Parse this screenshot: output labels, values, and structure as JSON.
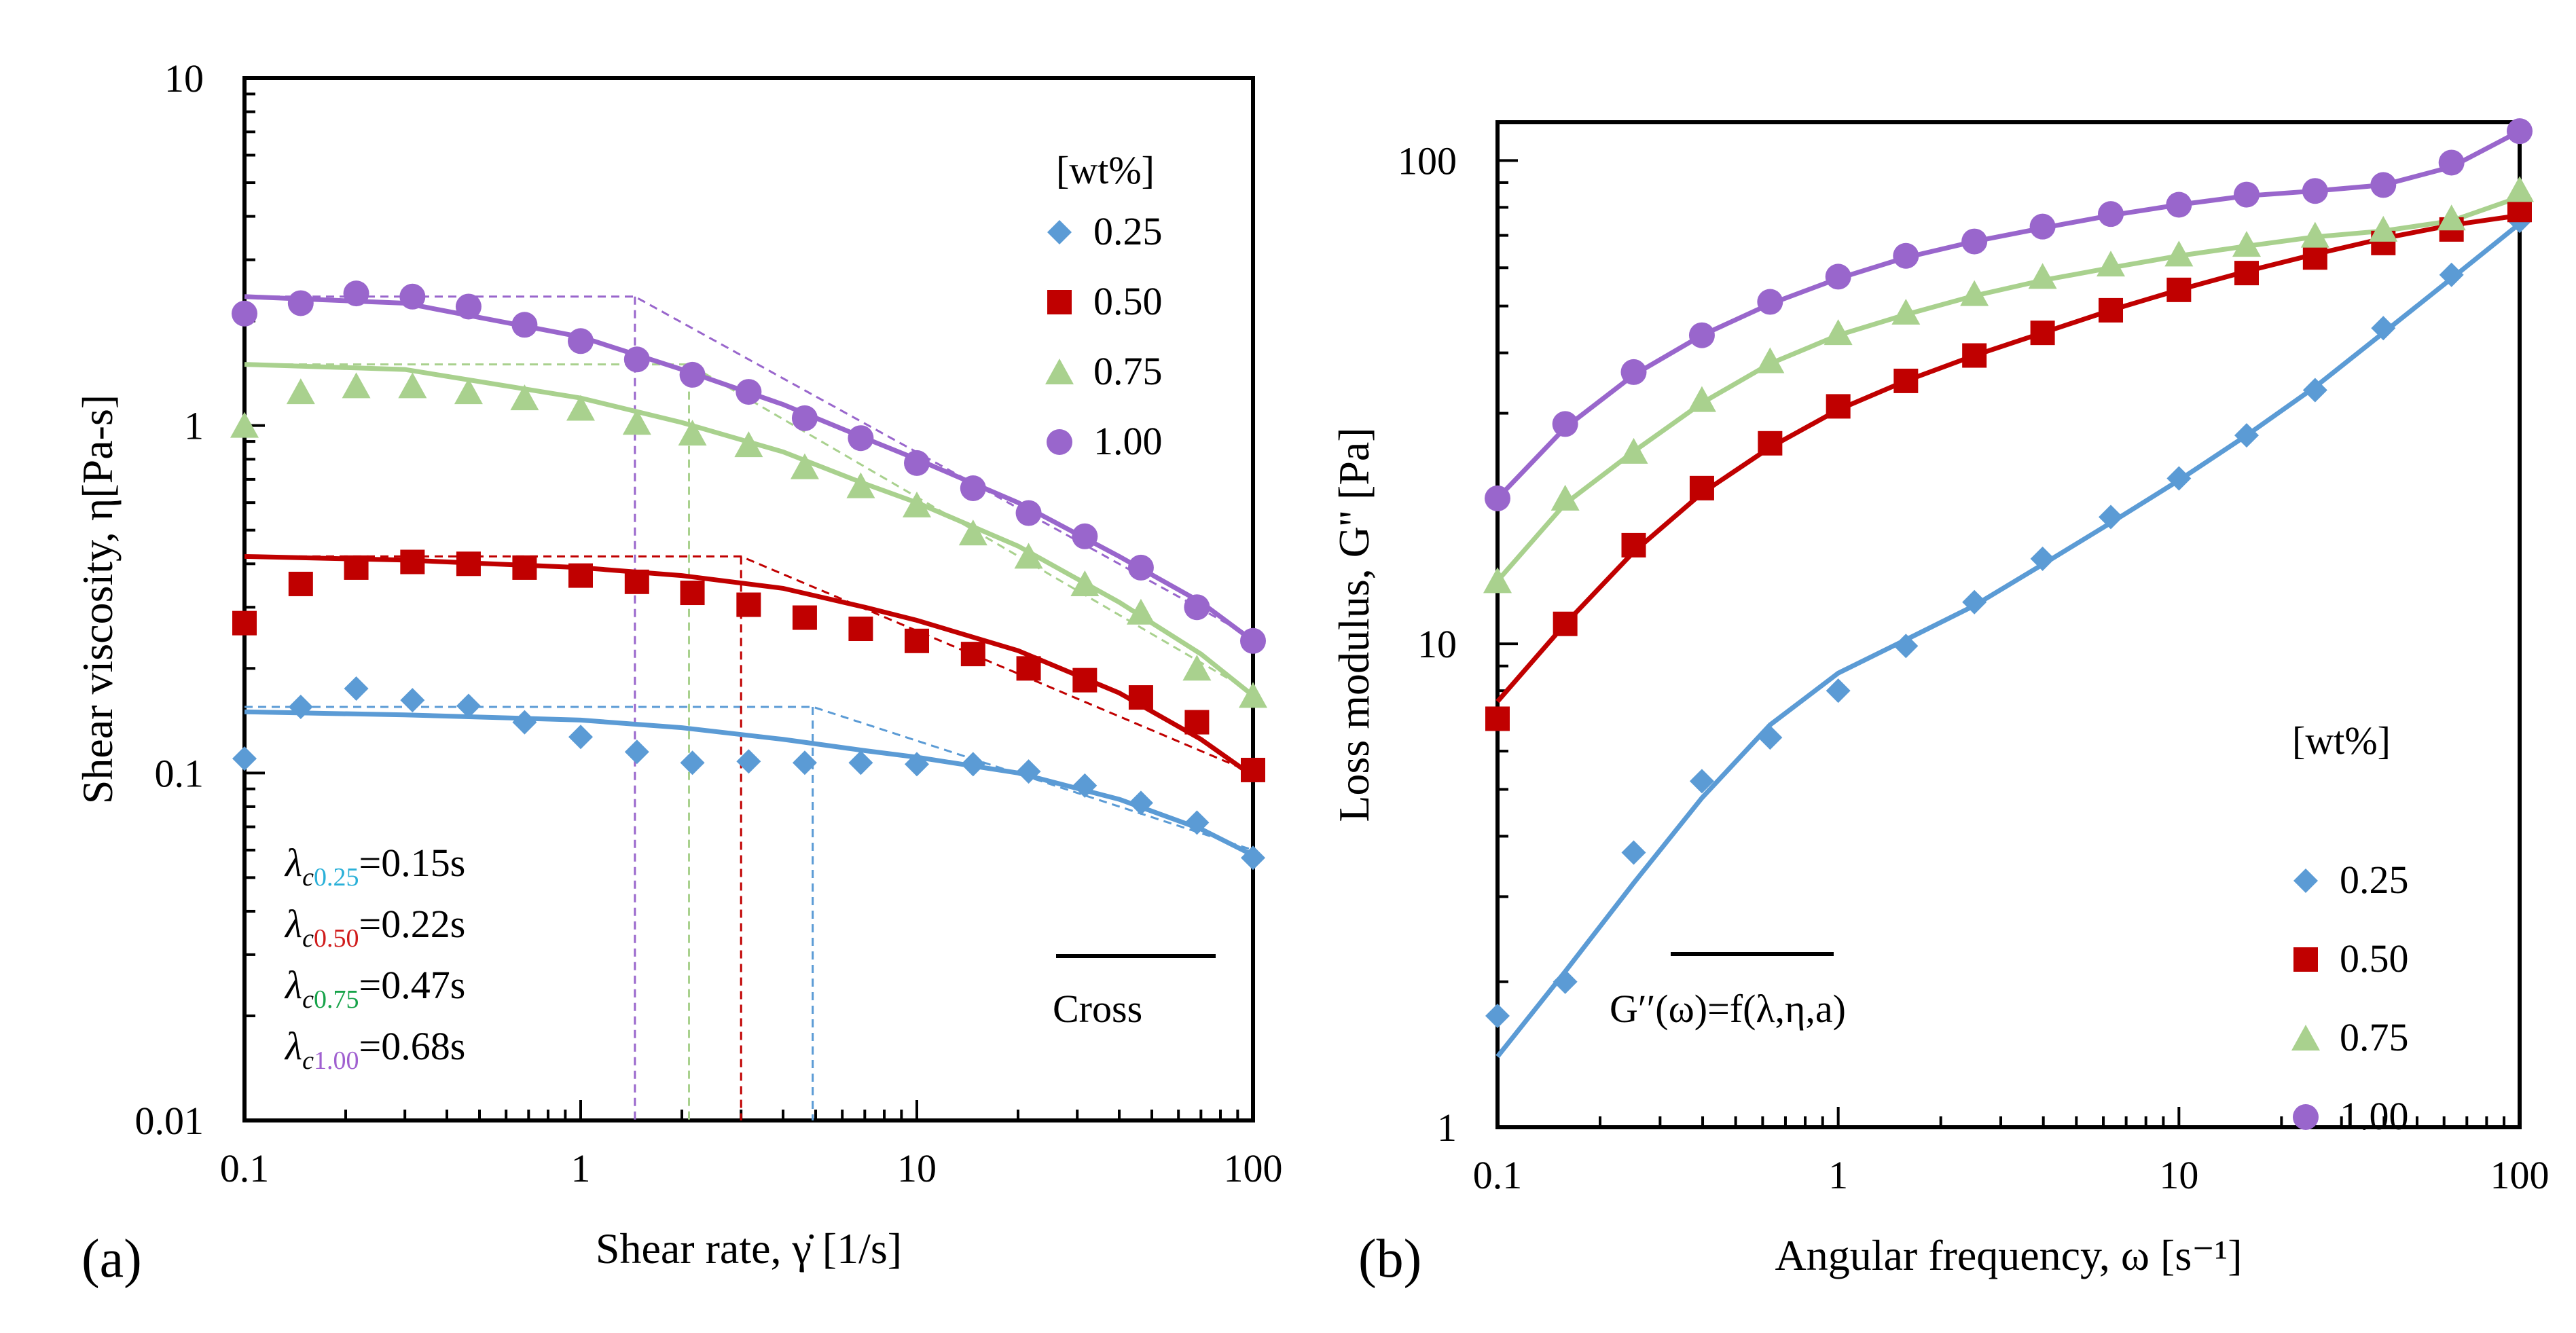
{
  "chart_data": [
    {
      "panel": "(a)",
      "type": "scatter",
      "xscale": "log",
      "yscale": "log",
      "xlim": [
        0.1,
        100
      ],
      "ylim": [
        0.01,
        10
      ],
      "xlabel": "Shear rate, γ̇ [1/s]",
      "ylabel": "Shear viscosity, η[Pa-s]",
      "x_ticks": [
        0.1,
        1,
        10,
        100
      ],
      "x_tick_labels": [
        "0.1",
        "1",
        "10",
        "100"
      ],
      "y_ticks": [
        0.01,
        0.1,
        1,
        10
      ],
      "y_tick_labels": [
        "0.01",
        "0.1",
        "1",
        "10"
      ],
      "legend_title": "[wt%]",
      "model_label": "Cross",
      "lambda_lines": [
        {
          "prefix": "λ",
          "sub1": "c",
          "sub2": "0.25",
          "suffix": "=0.15s",
          "color": "#2ab0d8"
        },
        {
          "prefix": "λ",
          "sub1": "c",
          "sub2": "0.50",
          "suffix": "=0.22s",
          "color": "#d01c1c"
        },
        {
          "prefix": "λ",
          "sub1": "c",
          "sub2": "0.75",
          "suffix": "=0.47s",
          "color": "#17a34a"
        },
        {
          "prefix": "λ",
          "sub1": "c",
          "sub2": "1.00",
          "suffix": "=0.68s",
          "color": "#a060d0"
        }
      ],
      "series": [
        {
          "name": "0.25",
          "color": "#5b9bd5",
          "marker": "diamond",
          "x": [
            0.1,
            0.147,
            0.215,
            0.316,
            0.464,
            0.681,
            1.0,
            1.47,
            2.15,
            3.16,
            4.64,
            6.81,
            10.0,
            14.7,
            21.5,
            31.6,
            46.4,
            68.1,
            100
          ],
          "y": [
            0.11,
            0.155,
            0.175,
            0.162,
            0.156,
            0.14,
            0.127,
            0.115,
            0.107,
            0.108,
            0.107,
            0.107,
            0.106,
            0.106,
            0.101,
            0.092,
            0.082,
            0.072,
            0.057
          ],
          "fit_x": [
            0.1,
            0.3,
            1.0,
            2.0,
            4.0,
            7.0,
            10,
            20,
            40,
            70,
            100
          ],
          "fit_y": [
            0.15,
            0.147,
            0.142,
            0.135,
            0.125,
            0.116,
            0.111,
            0.1,
            0.084,
            0.069,
            0.058
          ],
          "cross_guide_x": [
            0.1,
            4.9,
            100
          ],
          "cross_guide_y": [
            0.155,
            0.155,
            0.06
          ]
        },
        {
          "name": "0.50",
          "color": "#c00000",
          "marker": "square",
          "x": [
            0.1,
            0.147,
            0.215,
            0.316,
            0.464,
            0.681,
            1.0,
            1.47,
            2.15,
            3.16,
            4.64,
            6.81,
            10.0,
            14.7,
            21.5,
            31.6,
            46.4,
            68.1,
            100
          ],
          "y": [
            0.27,
            0.35,
            0.39,
            0.405,
            0.4,
            0.39,
            0.37,
            0.355,
            0.33,
            0.305,
            0.28,
            0.26,
            0.24,
            0.22,
            0.2,
            0.185,
            0.165,
            0.14,
            0.102
          ],
          "fit_x": [
            0.1,
            0.3,
            1.0,
            2.0,
            4.0,
            7.0,
            10,
            20,
            40,
            70,
            100
          ],
          "fit_y": [
            0.42,
            0.41,
            0.39,
            0.37,
            0.34,
            0.3,
            0.275,
            0.225,
            0.17,
            0.125,
            0.098
          ],
          "cross_guide_x": [
            0.1,
            3.0,
            100
          ],
          "cross_guide_y": [
            0.42,
            0.42,
            0.1
          ]
        },
        {
          "name": "0.75",
          "color": "#a9d18e",
          "marker": "triangle",
          "x": [
            0.1,
            0.147,
            0.215,
            0.316,
            0.464,
            0.681,
            1.0,
            1.47,
            2.15,
            3.16,
            4.64,
            6.81,
            10.0,
            14.7,
            21.5,
            31.6,
            46.4,
            68.1,
            100
          ],
          "y": [
            1.0,
            1.25,
            1.3,
            1.3,
            1.25,
            1.2,
            1.12,
            1.02,
            0.95,
            0.88,
            0.76,
            0.67,
            0.59,
            0.49,
            0.42,
            0.35,
            0.29,
            0.2,
            0.167
          ],
          "fit_x": [
            0.1,
            0.3,
            1.0,
            2.0,
            4.0,
            7.0,
            10,
            20,
            40,
            70,
            100
          ],
          "fit_y": [
            1.5,
            1.45,
            1.2,
            1.02,
            0.84,
            0.68,
            0.6,
            0.45,
            0.31,
            0.22,
            0.167
          ],
          "cross_guide_x": [
            0.1,
            2.1,
            100
          ],
          "cross_guide_y": [
            1.5,
            1.5,
            0.17
          ]
        },
        {
          "name": "1.00",
          "color": "#9966cc",
          "marker": "circle",
          "x": [
            0.1,
            0.147,
            0.215,
            0.316,
            0.464,
            0.681,
            1.0,
            1.47,
            2.15,
            3.16,
            4.64,
            6.81,
            10.0,
            14.7,
            21.5,
            31.6,
            46.4,
            68.1,
            100
          ],
          "y": [
            2.1,
            2.25,
            2.4,
            2.35,
            2.2,
            1.95,
            1.75,
            1.55,
            1.4,
            1.25,
            1.05,
            0.92,
            0.78,
            0.66,
            0.56,
            0.48,
            0.39,
            0.3,
            0.24
          ],
          "fit_x": [
            0.1,
            0.3,
            1.0,
            2.0,
            4.0,
            7.0,
            10,
            20,
            40,
            70,
            100
          ],
          "fit_y": [
            2.35,
            2.25,
            1.8,
            1.45,
            1.15,
            0.92,
            0.8,
            0.6,
            0.42,
            0.31,
            0.24
          ],
          "cross_guide_x": [
            0.1,
            1.45,
            100
          ],
          "cross_guide_y": [
            2.35,
            2.35,
            0.245
          ]
        }
      ]
    },
    {
      "panel": "(b)",
      "type": "scatter",
      "xscale": "log",
      "yscale": "log",
      "xlim": [
        0.1,
        100
      ],
      "ylim": [
        1,
        120
      ],
      "xlabel": "Angular frequency, ω [s⁻¹]",
      "ylabel": "Loss modulus, G'' [Pa]",
      "x_ticks": [
        0.1,
        1,
        10,
        100
      ],
      "x_tick_labels": [
        "0.1",
        "1",
        "10",
        "100"
      ],
      "y_ticks": [
        1,
        10,
        100
      ],
      "y_tick_labels": [
        "1",
        "10",
        "100"
      ],
      "legend_title": "[wt%]",
      "model_label": "G′′(ω)=f(λ,η,a)",
      "series": [
        {
          "name": "0.25",
          "color": "#5b9bd5",
          "marker": "diamond",
          "x": [
            0.1,
            0.158,
            0.251,
            0.398,
            0.631,
            1.0,
            1.58,
            2.51,
            3.98,
            6.31,
            10.0,
            15.8,
            25.1,
            39.8,
            63.1,
            100
          ],
          "y": [
            1.7,
            2.0,
            3.7,
            5.2,
            6.4,
            8.0,
            9.9,
            12.2,
            15.0,
            18.3,
            22.0,
            27.0,
            33.5,
            45.0,
            58.0,
            75.0
          ],
          "fit_x": [
            0.1,
            0.158,
            0.251,
            0.398,
            0.631,
            1.0,
            1.58,
            2.51,
            3.98,
            6.31,
            10.0,
            15.8,
            25.1,
            39.8,
            63.1,
            100
          ],
          "fit_y": [
            1.4,
            2.1,
            3.2,
            4.8,
            6.8,
            8.7,
            10.2,
            12.0,
            14.6,
            17.8,
            21.8,
            27.0,
            34.0,
            44.0,
            57.0,
            74.0
          ]
        },
        {
          "name": "0.50",
          "color": "#c00000",
          "marker": "square",
          "x": [
            0.1,
            0.158,
            0.251,
            0.398,
            0.631,
            1.0,
            1.58,
            2.51,
            3.98,
            6.31,
            10.0,
            15.8,
            25.1,
            39.8,
            63.1,
            100
          ],
          "y": [
            7.0,
            11.0,
            16.0,
            21.0,
            26.0,
            31.0,
            35.0,
            39.5,
            44.0,
            49.0,
            54.0,
            58.5,
            63.0,
            67.5,
            72.0,
            79.0
          ],
          "fit_x": [
            0.1,
            0.158,
            0.251,
            0.398,
            0.631,
            1.0,
            1.58,
            2.51,
            3.98,
            6.31,
            10.0,
            15.8,
            25.1,
            39.8,
            63.1,
            100
          ],
          "fit_y": [
            7.6,
            11.0,
            15.5,
            20.5,
            25.5,
            30.5,
            35.0,
            39.5,
            44.0,
            49.0,
            54.0,
            59.0,
            64.0,
            69.0,
            73.5,
            77.0
          ]
        },
        {
          "name": "0.75",
          "color": "#a9d18e",
          "marker": "triangle",
          "x": [
            0.1,
            0.158,
            0.251,
            0.398,
            0.631,
            1.0,
            1.58,
            2.51,
            3.98,
            6.31,
            10.0,
            15.8,
            25.1,
            39.8,
            63.1,
            100
          ],
          "y": [
            13.5,
            20.0,
            25.0,
            32.0,
            38.5,
            44.0,
            48.5,
            53.0,
            57.5,
            61.0,
            64.0,
            67.0,
            70.0,
            72.0,
            76.0,
            87.0
          ],
          "fit_x": [
            0.1,
            0.158,
            0.251,
            0.398,
            0.631,
            1.0,
            1.58,
            2.51,
            3.98,
            6.31,
            10.0,
            15.8,
            25.1,
            39.8,
            63.1,
            100
          ],
          "fit_y": [
            13.5,
            19.5,
            25.0,
            31.5,
            38.0,
            43.5,
            48.0,
            52.5,
            56.5,
            60.0,
            63.5,
            66.5,
            69.5,
            71.5,
            75.0,
            84.0
          ]
        },
        {
          "name": "1.00",
          "color": "#9966cc",
          "marker": "circle",
          "x": [
            0.1,
            0.158,
            0.251,
            0.398,
            0.631,
            1.0,
            1.58,
            2.51,
            3.98,
            6.31,
            10.0,
            15.8,
            25.1,
            39.8,
            63.1,
            100
          ],
          "y": [
            20.0,
            28.5,
            36.5,
            43.5,
            51.0,
            57.5,
            63.5,
            68.0,
            73.0,
            77.5,
            81.0,
            85.0,
            86.5,
            89.0,
            99.0,
            115.0
          ],
          "fit_x": [
            0.1,
            0.158,
            0.251,
            0.398,
            0.631,
            1.0,
            1.58,
            2.51,
            3.98,
            6.31,
            10.0,
            15.8,
            25.1,
            39.8,
            63.1,
            100
          ],
          "fit_y": [
            20.0,
            28.0,
            36.0,
            43.5,
            50.5,
            57.0,
            63.0,
            68.0,
            72.5,
            77.0,
            81.0,
            84.5,
            86.5,
            89.0,
            97.0,
            115.0
          ]
        }
      ]
    }
  ]
}
